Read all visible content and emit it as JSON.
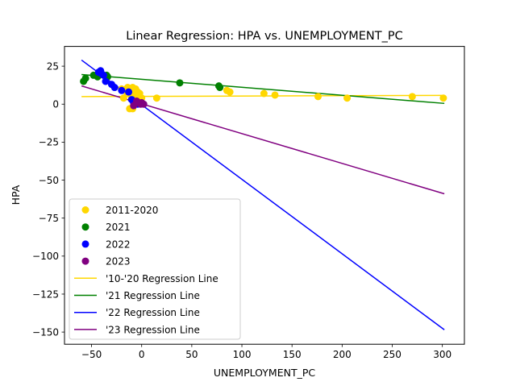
{
  "chart_data": {
    "type": "scatter",
    "title": "Linear Regression: HPA vs. UNEMPLOYMENT_PC",
    "xlabel": "UNEMPLOYMENT_PC",
    "ylabel": "HPA",
    "xlim": [
      -77,
      322
    ],
    "ylim": [
      -158,
      38
    ],
    "xticks": [
      -50,
      0,
      50,
      100,
      150,
      200,
      250,
      300
    ],
    "yticks": [
      25,
      0,
      -25,
      -50,
      -75,
      -100,
      -125,
      -150
    ],
    "xtick_labels": [
      "−50",
      "0",
      "50",
      "100",
      "150",
      "200",
      "250",
      "300"
    ],
    "ytick_labels": [
      "25",
      "0",
      "−25",
      "−50",
      "−75",
      "−100",
      "−125",
      "−150"
    ],
    "grid": false,
    "legend_position": "lower-left",
    "series": [
      {
        "name": "2011-2020",
        "kind": "scatter",
        "color": "#FFD700",
        "points": [
          [
            -20,
            10
          ],
          [
            -18,
            4
          ],
          [
            -15,
            8
          ],
          [
            -14,
            11
          ],
          [
            -13,
            9
          ],
          [
            -12,
            -3
          ],
          [
            -11,
            6
          ],
          [
            -10,
            9
          ],
          [
            -9,
            11
          ],
          [
            -9,
            -3
          ],
          [
            -8,
            7
          ],
          [
            -7,
            3
          ],
          [
            -6,
            10
          ],
          [
            -5,
            6
          ],
          [
            -4,
            8
          ],
          [
            -3,
            5
          ],
          [
            -2,
            7
          ],
          [
            0,
            4
          ],
          [
            15,
            4
          ],
          [
            85,
            9
          ],
          [
            88,
            8
          ],
          [
            122,
            7
          ],
          [
            133,
            6
          ],
          [
            176,
            5
          ],
          [
            205,
            4
          ],
          [
            270,
            5
          ],
          [
            301,
            4
          ]
        ]
      },
      {
        "name": "2021",
        "kind": "scatter",
        "color": "#008000",
        "points": [
          [
            -58,
            15
          ],
          [
            -56,
            17
          ],
          [
            -48,
            19
          ],
          [
            -44,
            18
          ],
          [
            -40,
            20
          ],
          [
            -35,
            19
          ],
          [
            -34,
            18
          ],
          [
            38,
            14
          ],
          [
            77,
            12
          ],
          [
            78,
            11
          ]
        ]
      },
      {
        "name": "2022",
        "kind": "scatter",
        "color": "#0000FF",
        "points": [
          [
            -43,
            21
          ],
          [
            -41,
            22
          ],
          [
            -40,
            20
          ],
          [
            -38,
            19
          ],
          [
            -36,
            15
          ],
          [
            -30,
            13
          ],
          [
            -27,
            11
          ],
          [
            -20,
            9
          ],
          [
            -13,
            8
          ],
          [
            -10,
            3
          ],
          [
            -8,
            1
          ],
          [
            -4,
            0
          ]
        ]
      },
      {
        "name": "2023",
        "kind": "scatter",
        "color": "#800080",
        "points": [
          [
            -8,
            -1
          ],
          [
            -5,
            2
          ],
          [
            -3,
            1
          ],
          [
            -1,
            0
          ],
          [
            0,
            1
          ],
          [
            2,
            0
          ]
        ]
      },
      {
        "name": "'10-'20 Regression Line",
        "kind": "line",
        "color": "#FFD700",
        "points": [
          [
            -60,
            5
          ],
          [
            302,
            5.8
          ]
        ]
      },
      {
        "name": "'21 Regression Line",
        "kind": "line",
        "color": "#008000",
        "points": [
          [
            -60,
            19.5
          ],
          [
            302,
            0.5
          ]
        ]
      },
      {
        "name": "'22 Regression Line",
        "kind": "line",
        "color": "#0000FF",
        "points": [
          [
            -60,
            29
          ],
          [
            302,
            -148.5
          ]
        ]
      },
      {
        "name": "'23 Regression Line",
        "kind": "line",
        "color": "#800080",
        "points": [
          [
            -60,
            12
          ],
          [
            302,
            -59
          ]
        ]
      }
    ]
  }
}
